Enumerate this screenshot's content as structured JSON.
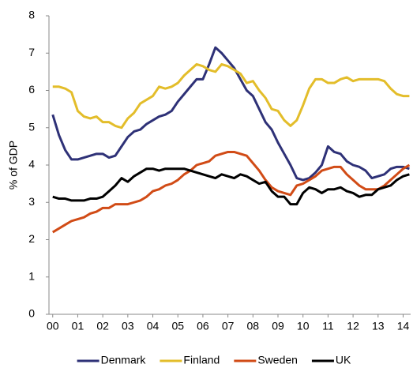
{
  "chart_data": {
    "type": "line",
    "y_label": "% of GDP",
    "x": [
      0,
      0.25,
      0.5,
      0.75,
      1,
      1.25,
      1.5,
      1.75,
      2,
      2.25,
      2.5,
      2.75,
      3,
      3.25,
      3.5,
      3.75,
      4,
      4.25,
      4.5,
      4.75,
      5,
      5.25,
      5.5,
      5.75,
      6,
      6.25,
      6.5,
      6.75,
      7,
      7.25,
      7.5,
      7.75,
      8,
      8.25,
      8.5,
      8.75,
      9,
      9.25,
      9.5,
      9.75,
      10,
      10.25,
      10.5,
      10.75,
      11,
      11.25,
      11.5,
      11.75,
      12,
      12.25,
      12.5,
      12.75,
      13,
      13.25,
      13.5,
      13.75,
      14,
      14.25
    ],
    "series": [
      {
        "name": "Denmark",
        "color": "#2e3177",
        "values": [
          5.35,
          4.8,
          4.4,
          4.15,
          4.15,
          4.2,
          4.25,
          4.3,
          4.3,
          4.2,
          4.25,
          4.5,
          4.75,
          4.9,
          4.95,
          5.1,
          5.2,
          5.3,
          5.35,
          5.45,
          5.7,
          5.9,
          6.1,
          6.3,
          6.3,
          6.7,
          7.15,
          7.0,
          6.8,
          6.6,
          6.3,
          6.0,
          5.85,
          5.5,
          5.15,
          4.95,
          4.6,
          4.3,
          4.0,
          3.65,
          3.6,
          3.65,
          3.8,
          4.0,
          4.5,
          4.35,
          4.3,
          4.1,
          4.0,
          3.95,
          3.85,
          3.65,
          3.7,
          3.75,
          3.9,
          3.95,
          3.95,
          3.9
        ]
      },
      {
        "name": "Finland",
        "color": "#e3bd2a",
        "values": [
          6.1,
          6.1,
          6.05,
          5.95,
          5.45,
          5.3,
          5.25,
          5.3,
          5.15,
          5.15,
          5.05,
          5.0,
          5.25,
          5.4,
          5.65,
          5.75,
          5.85,
          6.1,
          6.05,
          6.1,
          6.2,
          6.4,
          6.55,
          6.7,
          6.65,
          6.55,
          6.5,
          6.7,
          6.65,
          6.55,
          6.45,
          6.2,
          6.25,
          6.0,
          5.8,
          5.5,
          5.45,
          5.2,
          5.05,
          5.2,
          5.6,
          6.05,
          6.3,
          6.3,
          6.2,
          6.2,
          6.3,
          6.35,
          6.25,
          6.3,
          6.3,
          6.3,
          6.3,
          6.25,
          6.05,
          5.9,
          5.85,
          5.85
        ]
      },
      {
        "name": "Sweden",
        "color": "#d14b16",
        "values": [
          2.2,
          2.3,
          2.4,
          2.5,
          2.55,
          2.6,
          2.7,
          2.75,
          2.85,
          2.85,
          2.95,
          2.95,
          2.95,
          3.0,
          3.05,
          3.15,
          3.3,
          3.35,
          3.45,
          3.5,
          3.6,
          3.75,
          3.85,
          4.0,
          4.05,
          4.1,
          4.25,
          4.3,
          4.35,
          4.35,
          4.3,
          4.25,
          4.05,
          3.85,
          3.6,
          3.4,
          3.3,
          3.25,
          3.2,
          3.45,
          3.5,
          3.6,
          3.7,
          3.85,
          3.9,
          3.95,
          3.95,
          3.75,
          3.6,
          3.45,
          3.35,
          3.35,
          3.35,
          3.45,
          3.6,
          3.75,
          3.9,
          4.0
        ]
      },
      {
        "name": "UK",
        "color": "#000000",
        "values": [
          3.15,
          3.1,
          3.1,
          3.05,
          3.05,
          3.05,
          3.1,
          3.1,
          3.15,
          3.3,
          3.45,
          3.65,
          3.55,
          3.7,
          3.8,
          3.9,
          3.9,
          3.85,
          3.9,
          3.9,
          3.9,
          3.9,
          3.85,
          3.8,
          3.75,
          3.7,
          3.65,
          3.75,
          3.7,
          3.65,
          3.75,
          3.7,
          3.6,
          3.5,
          3.55,
          3.3,
          3.15,
          3.15,
          2.95,
          2.95,
          3.25,
          3.4,
          3.35,
          3.25,
          3.35,
          3.35,
          3.4,
          3.3,
          3.25,
          3.15,
          3.2,
          3.2,
          3.35,
          3.4,
          3.45,
          3.6,
          3.7,
          3.75
        ]
      }
    ],
    "xlim": [
      -0.15,
      14.3
    ],
    "xticks": [
      {
        "value": 0,
        "label": "00"
      },
      {
        "value": 1,
        "label": "01"
      },
      {
        "value": 2,
        "label": "02"
      },
      {
        "value": 3,
        "label": "03"
      },
      {
        "value": 4,
        "label": "04"
      },
      {
        "value": 5,
        "label": "05"
      },
      {
        "value": 6,
        "label": "06"
      },
      {
        "value": 7,
        "label": "07"
      },
      {
        "value": 8,
        "label": "08"
      },
      {
        "value": 9,
        "label": "09"
      },
      10,
      11,
      12,
      13,
      14
    ],
    "ylim": [
      0,
      8
    ],
    "yticks": [
      0,
      1,
      2,
      3,
      4,
      5,
      6,
      7,
      8
    ],
    "grid": false,
    "legend": "bottom"
  }
}
